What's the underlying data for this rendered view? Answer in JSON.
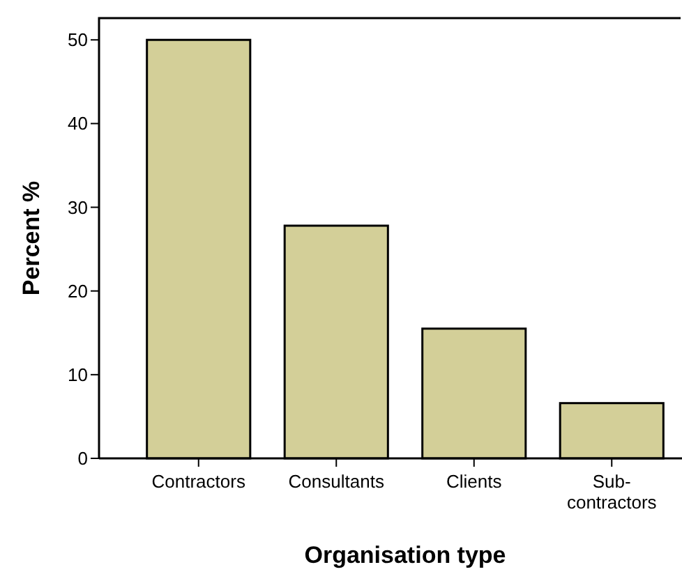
{
  "chart_data": {
    "type": "bar",
    "xlabel": "Organisation type",
    "ylabel": "Percent %",
    "categories": [
      "Contractors",
      "Consultants",
      "Clients",
      "Sub-contractors"
    ],
    "values": [
      50,
      27.8,
      15.5,
      6.6
    ],
    "color": "#d3cf98",
    "ylim": [
      0,
      52.6
    ],
    "yticks": [
      0,
      10,
      20,
      30,
      40,
      50
    ],
    "grid": false
  }
}
